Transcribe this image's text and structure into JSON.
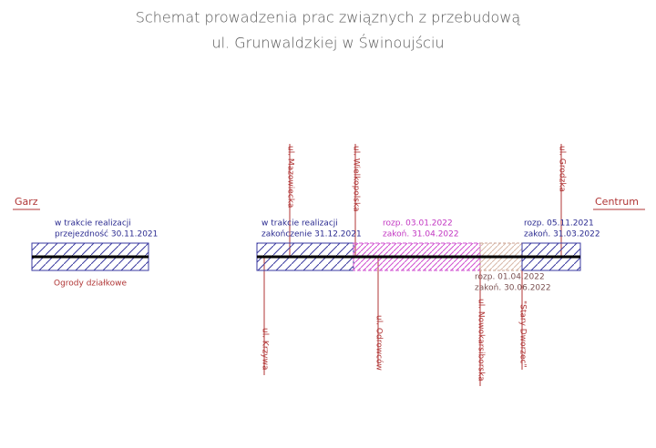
{
  "header": {
    "title_lines": [
      "Schemat prowadzenia prac związnych z przebudową",
      "ul. Grunwaldzkiej w Świnoujściu"
    ]
  },
  "ends": {
    "left": "Garz",
    "right": "Centrum"
  },
  "streets_above": [
    "ul. Mazowiecka",
    "ul. Wielkopolska",
    "ul. Grodzka"
  ],
  "streets_below": [
    "ul. Krzywa",
    "ul. Odrowców",
    "ul. Nowokarsiborska",
    "\"Stary Dworzec\""
  ],
  "segments": [
    {
      "lines": [
        "w trakcie realizacji",
        "przejezdność 30.11.2021"
      ]
    },
    {
      "lines": [
        "w trakcie realizacji",
        "zakończenie 31.12.2021"
      ]
    },
    {
      "lines": [
        "rozp. 03.01.2022",
        "zakoń. 31.04.2022"
      ]
    },
    {
      "lines": [
        "rozp. 01.04.2022",
        "zakoń. 30.06.2022"
      ]
    },
    {
      "lines": [
        "rozp. 05.11.2021",
        "zakoń. 31.03.2022"
      ]
    }
  ],
  "area_note": "Ogrody działkowe"
}
